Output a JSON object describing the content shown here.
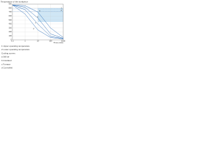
{
  "chart_data": {
    "type": "line",
    "title": "Temperature of the workpiece",
    "x_label": "Time (min)",
    "x": [
      0.1,
      1,
      10,
      100,
      1000
    ],
    "xlim": [
      0.1,
      1000
    ],
    "xticks": [
      0.1,
      1,
      10,
      100,
      1000
    ],
    "xscale": "log",
    "ylim": [
      0,
      900
    ],
    "yticks": [
      0,
      100,
      200,
      300,
      400,
      500,
      600,
      700,
      800,
      900
    ],
    "grid": true,
    "series": [
      {
        "name": "a",
        "color": "#2f6fb8",
        "values": [
          880,
          860,
          700,
          300,
          60
        ]
      },
      {
        "name": "b",
        "color": "#2f6fb8",
        "values": [
          880,
          820,
          550,
          150,
          40
        ]
      },
      {
        "name": "c",
        "color": "#2f6fb8",
        "values": [
          880,
          760,
          400,
          90,
          30
        ]
      },
      {
        "name": "d",
        "color": "#2f6fb8",
        "values": [
          880,
          650,
          250,
          60,
          25
        ]
      }
    ],
    "ref_lines": [
      {
        "value": 780,
        "label": "1"
      },
      {
        "value": 720,
        "label": "2"
      }
    ],
    "shaded_region": {
      "x": [
        10,
        1000
      ],
      "y": [
        450,
        800
      ],
      "color": "#cfe6f5"
    },
    "notes": [
      "1  Upper operating temperature",
      "2  Lower operating temperature",
      "Cooling curves:",
      "a  Still air",
      "b  Insulated",
      "c  Furnace",
      "d  Controlled"
    ]
  }
}
